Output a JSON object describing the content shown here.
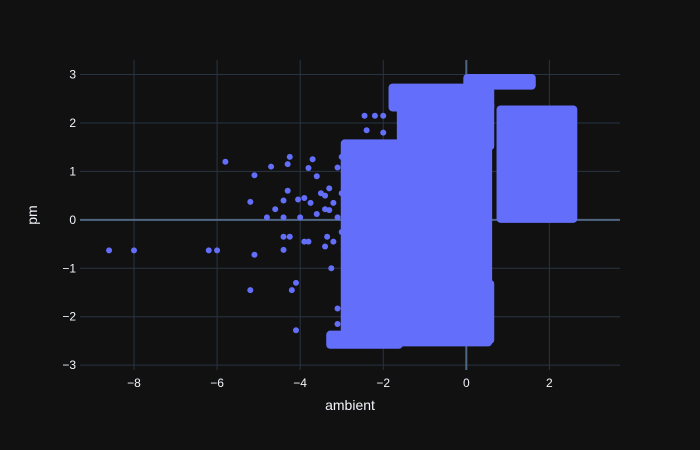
{
  "chart_data": {
    "type": "scatter",
    "xlabel": "ambient",
    "ylabel": "pm",
    "xlim": [
      -9.3,
      3.7
    ],
    "ylim": [
      -3.1,
      3.3
    ],
    "x_ticks": [
      -8,
      -6,
      -4,
      -2,
      0,
      2
    ],
    "y_ticks": [
      -3,
      -2,
      -1,
      0,
      1,
      2,
      3
    ],
    "grid": true,
    "colors": {
      "background": "#111111",
      "marker": "#636efa",
      "grid": "#283442",
      "zeroline": "#506784",
      "text": "#f2f5fa"
    },
    "dense_regions": [
      {
        "x": [
          -2.95,
          0.55
        ],
        "y": [
          -2.55,
          1.6
        ]
      },
      {
        "x": [
          -1.6,
          0.6
        ],
        "y": [
          1.5,
          2.4
        ]
      },
      {
        "x": [
          -1.8,
          0.6
        ],
        "y": [
          2.3,
          2.75
        ]
      },
      {
        "x": [
          0.0,
          1.6
        ],
        "y": [
          2.75,
          2.95
        ]
      },
      {
        "x": [
          0.8,
          2.6
        ],
        "y": [
          0.0,
          2.3
        ]
      },
      {
        "x": [
          -0.5,
          0.6
        ],
        "y": [
          -2.5,
          -1.3
        ]
      },
      {
        "x": [
          -3.3,
          -1.6
        ],
        "y": [
          -2.6,
          -2.35
        ]
      }
    ],
    "scatter_points": [
      {
        "x": -8.6,
        "y": -0.63
      },
      {
        "x": -8.0,
        "y": -0.63
      },
      {
        "x": -6.2,
        "y": -0.63
      },
      {
        "x": -6.0,
        "y": -0.63
      },
      {
        "x": -5.8,
        "y": 1.2
      },
      {
        "x": -5.2,
        "y": 0.37
      },
      {
        "x": -5.1,
        "y": 0.92
      },
      {
        "x": -5.1,
        "y": -0.72
      },
      {
        "x": -5.2,
        "y": -1.45
      },
      {
        "x": -4.8,
        "y": 0.05
      },
      {
        "x": -4.7,
        "y": 1.1
      },
      {
        "x": -4.6,
        "y": 0.22
      },
      {
        "x": -4.4,
        "y": 0.4
      },
      {
        "x": -4.4,
        "y": 0.05
      },
      {
        "x": -4.3,
        "y": 0.6
      },
      {
        "x": -4.3,
        "y": 1.15
      },
      {
        "x": -4.25,
        "y": 1.3
      },
      {
        "x": -4.4,
        "y": -0.35
      },
      {
        "x": -4.25,
        "y": -0.35
      },
      {
        "x": -4.4,
        "y": -0.62
      },
      {
        "x": -4.2,
        "y": -1.45
      },
      {
        "x": -4.1,
        "y": -1.3
      },
      {
        "x": -4.1,
        "y": -2.28
      },
      {
        "x": -4.05,
        "y": 0.42
      },
      {
        "x": -4.0,
        "y": 0.05
      },
      {
        "x": -3.9,
        "y": 0.45
      },
      {
        "x": -3.8,
        "y": 1.07
      },
      {
        "x": -3.9,
        "y": -0.45
      },
      {
        "x": -3.8,
        "y": -0.45
      },
      {
        "x": -3.7,
        "y": 1.25
      },
      {
        "x": -3.75,
        "y": 0.35
      },
      {
        "x": -3.6,
        "y": 0.9
      },
      {
        "x": -3.6,
        "y": 0.12
      },
      {
        "x": -3.5,
        "y": 0.55
      },
      {
        "x": -3.4,
        "y": 0.22
      },
      {
        "x": -3.4,
        "y": 0.5
      },
      {
        "x": -3.4,
        "y": -0.55
      },
      {
        "x": -3.35,
        "y": -0.35
      },
      {
        "x": -3.3,
        "y": 0.65
      },
      {
        "x": -3.2,
        "y": 0.35
      },
      {
        "x": -3.2,
        "y": -0.45
      },
      {
        "x": -3.25,
        "y": -1.0
      },
      {
        "x": -3.1,
        "y": 1.08
      },
      {
        "x": -3.1,
        "y": 0.05
      },
      {
        "x": -3.0,
        "y": 1.3
      },
      {
        "x": -3.0,
        "y": 0.55
      },
      {
        "x": -2.95,
        "y": -0.62
      },
      {
        "x": -2.9,
        "y": 1.4
      },
      {
        "x": -2.9,
        "y": 0.15
      },
      {
        "x": -2.9,
        "y": -1.45
      },
      {
        "x": -3.1,
        "y": -1.83
      },
      {
        "x": -3.1,
        "y": -2.15
      },
      {
        "x": -3.2,
        "y": -2.45
      },
      {
        "x": -3.0,
        "y": -0.25
      },
      {
        "x": -2.2,
        "y": 2.15
      },
      {
        "x": -2.0,
        "y": 2.15
      },
      {
        "x": -2.45,
        "y": 2.15
      },
      {
        "x": -2.0,
        "y": 1.8
      },
      {
        "x": -2.4,
        "y": 1.85
      },
      {
        "x": -3.3,
        "y": 0.2
      }
    ]
  }
}
